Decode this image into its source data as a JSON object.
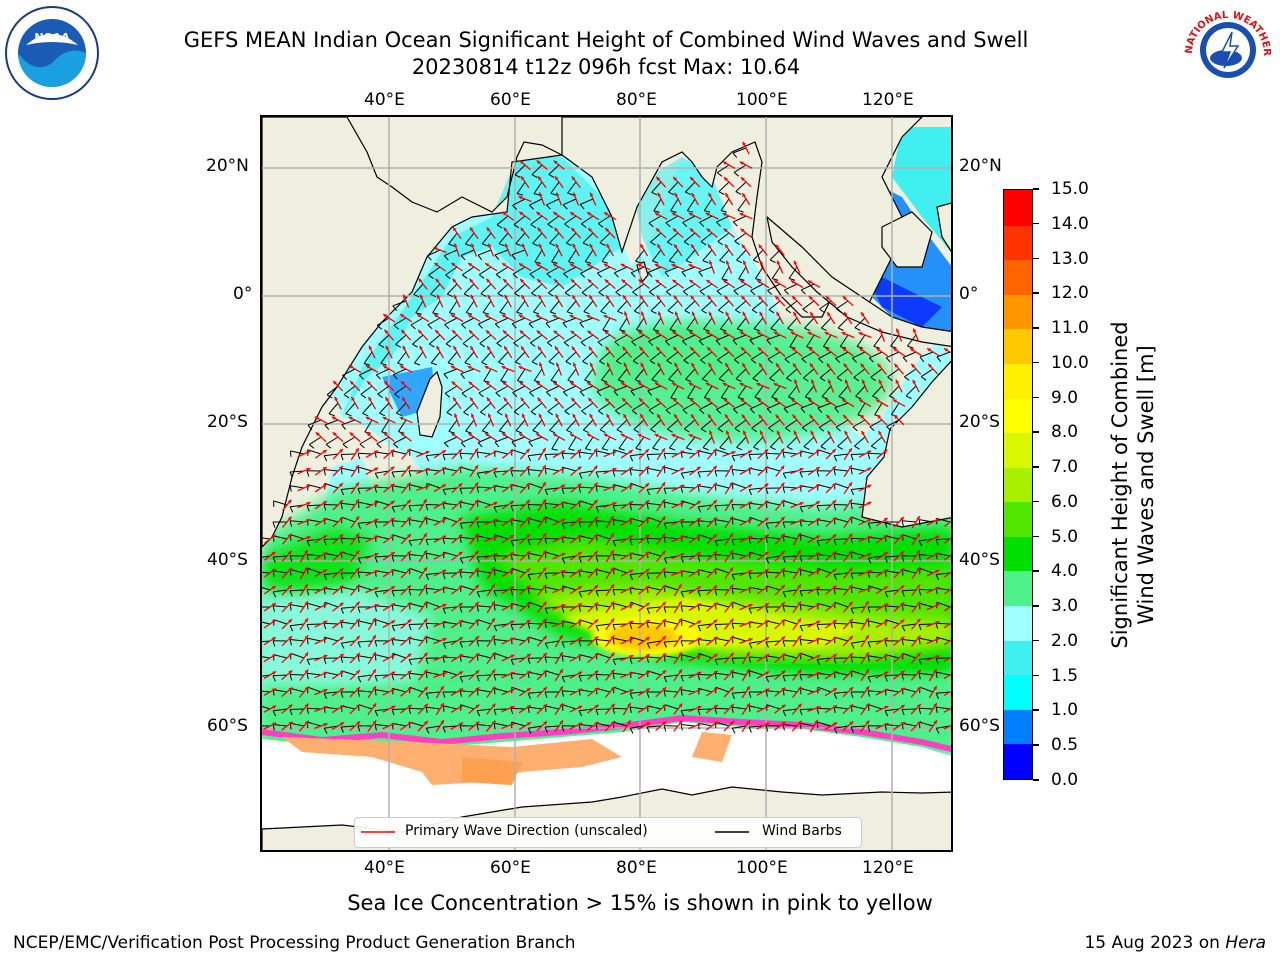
{
  "title": {
    "line1": "GEFS MEAN Indian Ocean Significant Height of Combined Wind Waves and Swell",
    "line2": "20230814 t12z 096h fcst   Max: 10.64"
  },
  "logos": {
    "left": {
      "name": "noaa-logo",
      "text": "NOAA"
    },
    "right": {
      "name": "nws-logo",
      "text": "NATIONAL WEATHER SERVICE"
    }
  },
  "map": {
    "lon_labels": [
      "40°E",
      "60°E",
      "80°E",
      "100°E",
      "120°E"
    ],
    "lat_labels": [
      "20°N",
      "0°",
      "20°S",
      "40°S",
      "60°S"
    ],
    "lon_range": [
      20,
      130
    ],
    "lat_range": [
      -75,
      27
    ],
    "colors": {
      "land": "#efefdf",
      "ice_free_sea": "#ffffff",
      "gridline": "#b0b0b0",
      "wave_arrow": "#ff0000",
      "wind_barb": "#000000"
    }
  },
  "colorbar": {
    "label_line1": "Significant Height of Combined",
    "label_line2": "Wind Waves and Swell [m]",
    "ticks": [
      "0.0",
      "0.5",
      "1.0",
      "1.5",
      "2.0",
      "3.0",
      "4.0",
      "5.0",
      "6.0",
      "7.0",
      "8.0",
      "9.0",
      "10.0",
      "11.0",
      "12.0",
      "13.0",
      "14.0",
      "15.0"
    ],
    "colors": [
      "#0000ff",
      "#0080ff",
      "#00ffff",
      "#40f0f0",
      "#a0ffff",
      "#4ef08a",
      "#00e000",
      "#50e600",
      "#a8f000",
      "#d8f800",
      "#ffff00",
      "#fff000",
      "#ffc800",
      "#ff9600",
      "#ff6400",
      "#ff3200",
      "#ff0000"
    ]
  },
  "legend": {
    "wave_label": "Primary Wave Direction (unscaled)",
    "wind_label": "Wind Barbs"
  },
  "ice_note": "Sea Ice Concentration > 15% is shown in pink to yellow",
  "footer": {
    "left": "NCEP/EMC/Verification Post Processing Product Generation Branch",
    "right_prefix": "15 Aug 2023 on ",
    "right_host": "Hera"
  }
}
